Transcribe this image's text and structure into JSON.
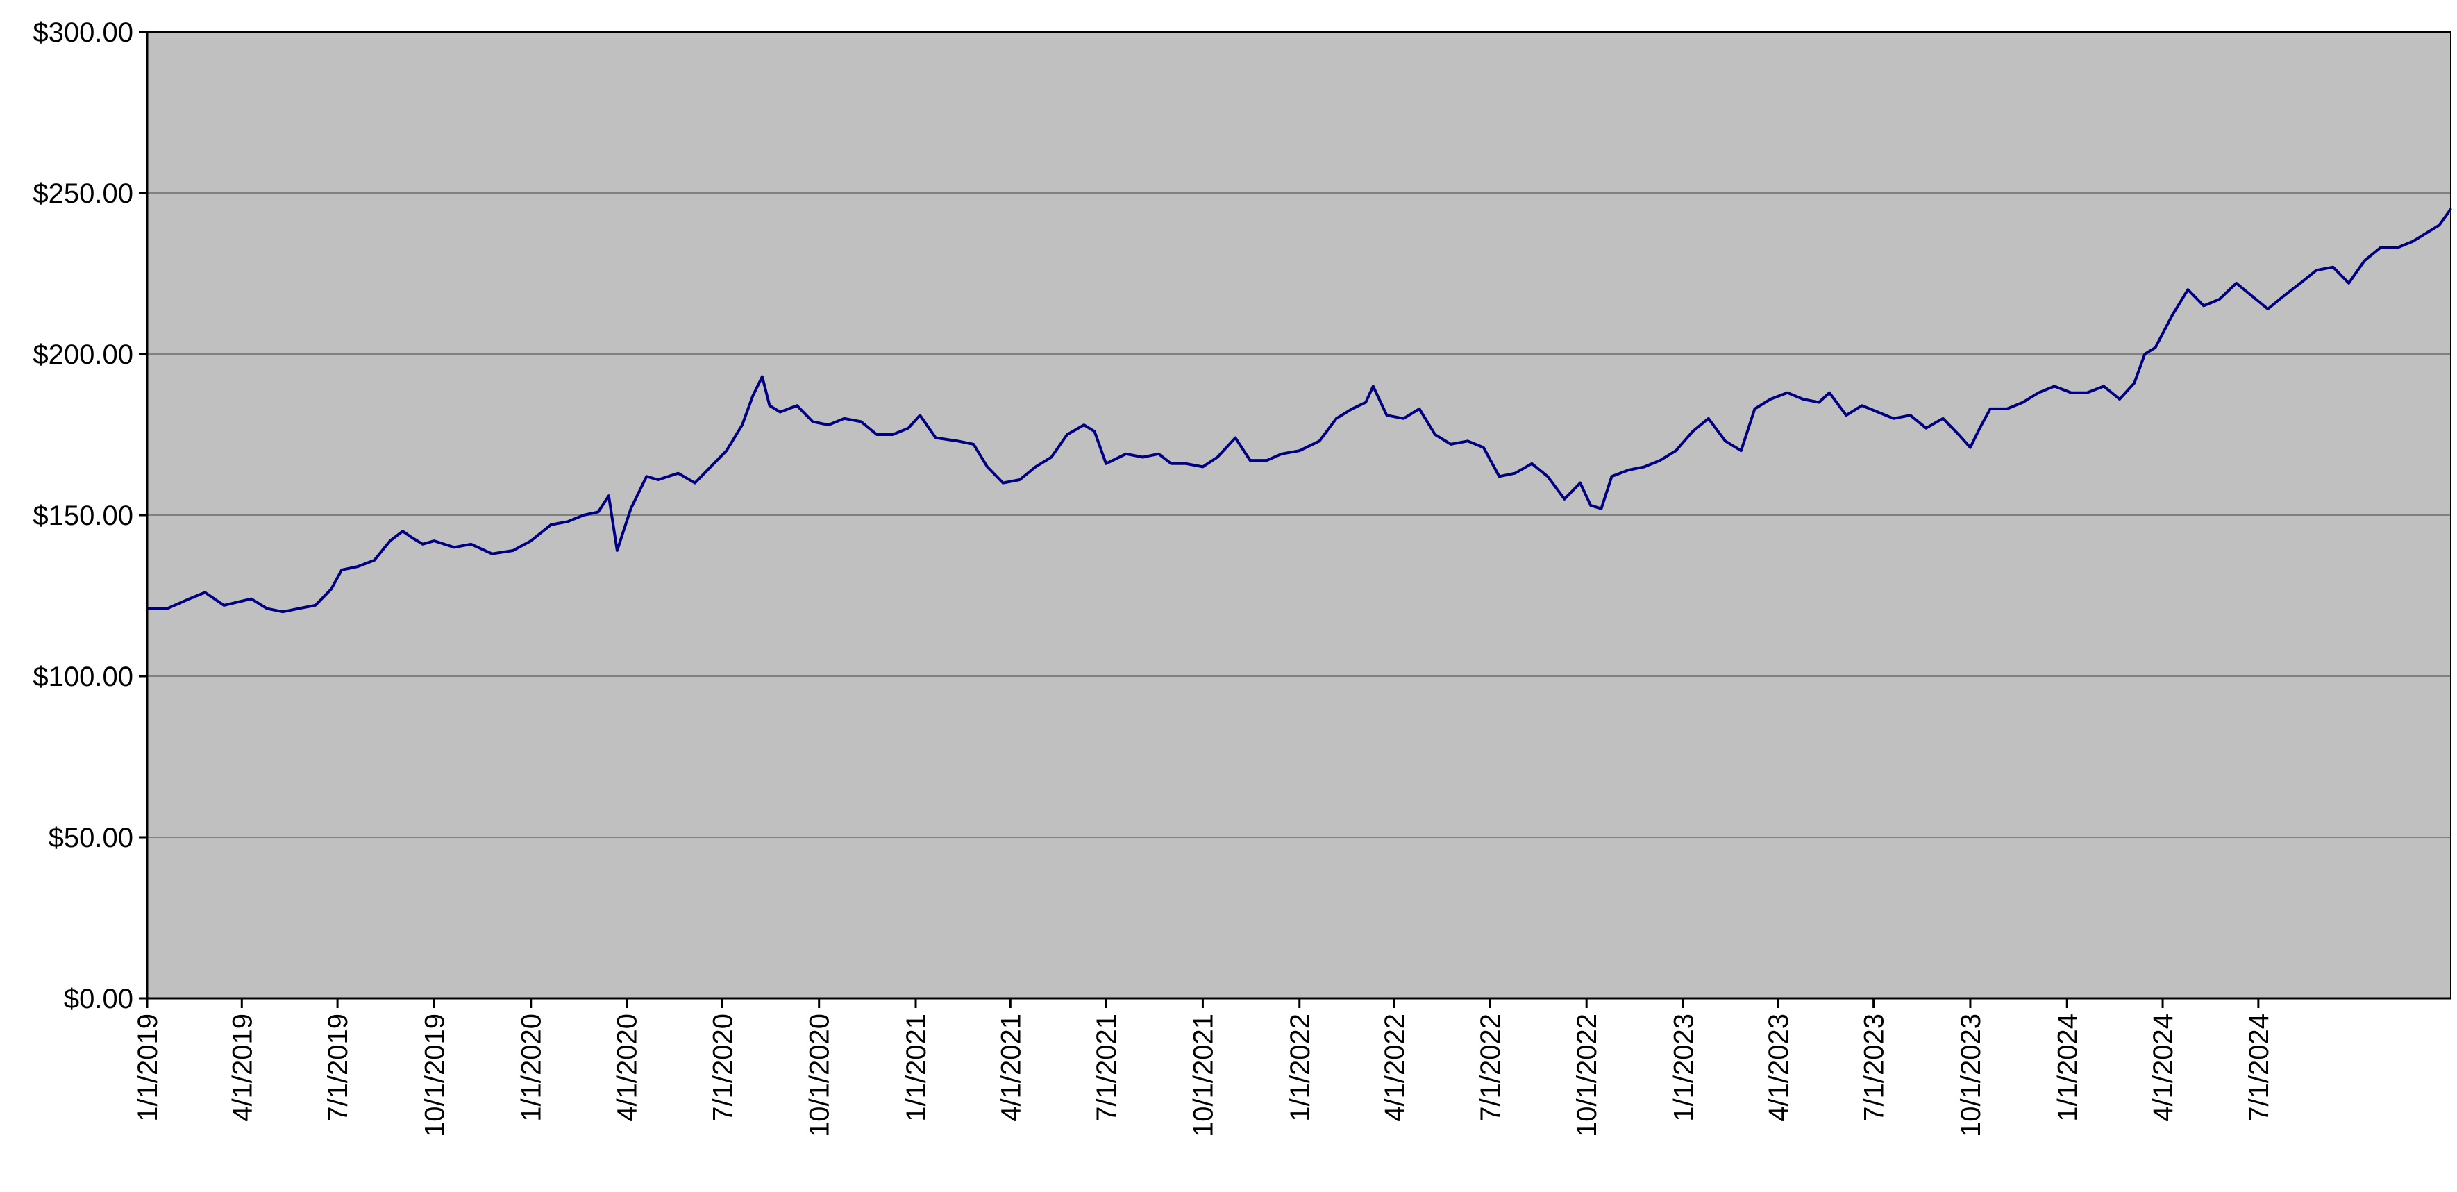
{
  "chart_data": {
    "type": "line",
    "title": "",
    "xlabel": "",
    "ylabel": "",
    "ylim": [
      0,
      300
    ],
    "grid": true,
    "legend": "none",
    "y_ticks": [
      "$0.00",
      "$50.00",
      "$100.00",
      "$150.00",
      "$200.00",
      "$250.00",
      "$300.00"
    ],
    "y_tick_values": [
      0,
      50,
      100,
      150,
      200,
      250,
      300
    ],
    "x_ticks": [
      "1/1/2019",
      "4/1/2019",
      "7/1/2019",
      "10/1/2019",
      "1/1/2020",
      "4/1/2020",
      "7/1/2020",
      "10/1/2020",
      "1/1/2021",
      "4/1/2021",
      "7/1/2021",
      "10/1/2021",
      "1/1/2022",
      "4/1/2022",
      "7/1/2022",
      "10/1/2022",
      "1/1/2023",
      "4/1/2023",
      "7/1/2023",
      "10/1/2023",
      "1/1/2024",
      "4/1/2024",
      "7/1/2024"
    ],
    "colors": {
      "plot_bg": "#c0c0c0",
      "line": "#000080",
      "grid": "#808080",
      "axis": "#000000"
    },
    "series": [
      {
        "color": "#000080",
        "x": [
          "2019-01-01",
          "2019-01-20",
          "2019-02-10",
          "2019-02-25",
          "2019-03-15",
          "2019-04-10",
          "2019-04-25",
          "2019-05-10",
          "2019-05-25",
          "2019-06-10",
          "2019-06-25",
          "2019-07-05",
          "2019-07-20",
          "2019-08-05",
          "2019-08-20",
          "2019-09-01",
          "2019-09-10",
          "2019-09-20",
          "2019-10-01",
          "2019-10-20",
          "2019-11-05",
          "2019-11-25",
          "2019-12-15",
          "2020-01-01",
          "2020-01-20",
          "2020-02-05",
          "2020-02-20",
          "2020-03-05",
          "2020-03-15",
          "2020-03-23",
          "2020-04-05",
          "2020-04-20",
          "2020-05-01",
          "2020-05-20",
          "2020-06-05",
          "2020-06-20",
          "2020-07-05",
          "2020-07-20",
          "2020-07-30",
          "2020-08-08",
          "2020-08-15",
          "2020-08-25",
          "2020-09-10",
          "2020-09-25",
          "2020-10-10",
          "2020-10-25",
          "2020-11-10",
          "2020-11-25",
          "2020-12-10",
          "2020-12-25",
          "2021-01-05",
          "2021-01-20",
          "2021-02-10",
          "2021-02-25",
          "2021-03-10",
          "2021-03-25",
          "2021-04-10",
          "2021-04-25",
          "2021-05-10",
          "2021-05-25",
          "2021-06-10",
          "2021-06-20",
          "2021-07-01",
          "2021-07-20",
          "2021-08-05",
          "2021-08-20",
          "2021-09-01",
          "2021-09-15",
          "2021-10-01",
          "2021-10-15",
          "2021-11-01",
          "2021-11-15",
          "2021-12-01",
          "2021-12-15",
          "2022-01-01",
          "2022-01-20",
          "2022-02-05",
          "2022-02-20",
          "2022-03-05",
          "2022-03-12",
          "2022-03-25",
          "2022-04-10",
          "2022-04-25",
          "2022-05-10",
          "2022-05-25",
          "2022-06-10",
          "2022-06-25",
          "2022-07-10",
          "2022-07-25",
          "2022-08-10",
          "2022-08-25",
          "2022-09-10",
          "2022-09-25",
          "2022-10-05",
          "2022-10-15",
          "2022-10-25",
          "2022-11-10",
          "2022-11-25",
          "2022-12-10",
          "2022-12-25",
          "2023-01-10",
          "2023-01-25",
          "2023-02-10",
          "2023-02-25",
          "2023-03-10",
          "2023-03-25",
          "2023-04-10",
          "2023-04-25",
          "2023-05-10",
          "2023-05-20",
          "2023-06-05",
          "2023-06-20",
          "2023-07-05",
          "2023-07-20",
          "2023-08-05",
          "2023-08-20",
          "2023-09-05",
          "2023-09-20",
          "2023-10-01",
          "2023-10-10",
          "2023-10-20",
          "2023-11-05",
          "2023-11-20",
          "2023-12-05",
          "2023-12-20",
          "2024-01-05",
          "2024-01-20",
          "2024-02-05",
          "2024-02-20",
          "2024-03-05",
          "2024-03-15",
          "2024-03-25",
          "2024-04-10",
          "2024-04-25",
          "2024-05-10",
          "2024-05-25",
          "2024-06-10",
          "2024-06-25",
          "2024-07-10",
          "2024-07-25",
          "2024-08-10",
          "2024-08-25",
          "2024-09-10",
          "2024-09-25",
          "2024-10-10",
          "2024-10-25",
          "2024-11-10",
          "2024-11-25",
          "2024-12-10",
          "2024-12-20",
          "2024-12-31"
        ],
        "values": [
          121,
          121,
          124,
          126,
          122,
          124,
          121,
          120,
          121,
          122,
          127,
          133,
          134,
          136,
          142,
          145,
          143,
          141,
          142,
          140,
          141,
          138,
          139,
          142,
          147,
          148,
          150,
          151,
          156,
          139,
          152,
          162,
          161,
          163,
          160,
          165,
          170,
          178,
          187,
          193,
          184,
          182,
          184,
          179,
          178,
          180,
          179,
          175,
          175,
          177,
          181,
          174,
          173,
          172,
          165,
          160,
          161,
          165,
          168,
          175,
          178,
          176,
          166,
          169,
          168,
          169,
          166,
          166,
          165,
          168,
          174,
          167,
          167,
          169,
          170,
          173,
          180,
          183,
          185,
          190,
          181,
          180,
          183,
          175,
          172,
          173,
          171,
          162,
          163,
          166,
          162,
          155,
          160,
          153,
          152,
          162,
          164,
          165,
          167,
          170,
          176,
          180,
          173,
          170,
          183,
          186,
          188,
          186,
          185,
          188,
          181,
          184,
          182,
          180,
          181,
          177,
          180,
          175,
          171,
          177,
          183,
          183,
          185,
          188,
          190,
          188,
          188,
          190,
          186,
          191,
          200,
          202,
          212,
          220,
          215,
          217,
          222,
          218,
          214,
          218,
          222,
          226,
          227,
          222,
          229,
          233,
          233,
          235,
          238,
          240,
          245
        ]
      }
    ]
  }
}
